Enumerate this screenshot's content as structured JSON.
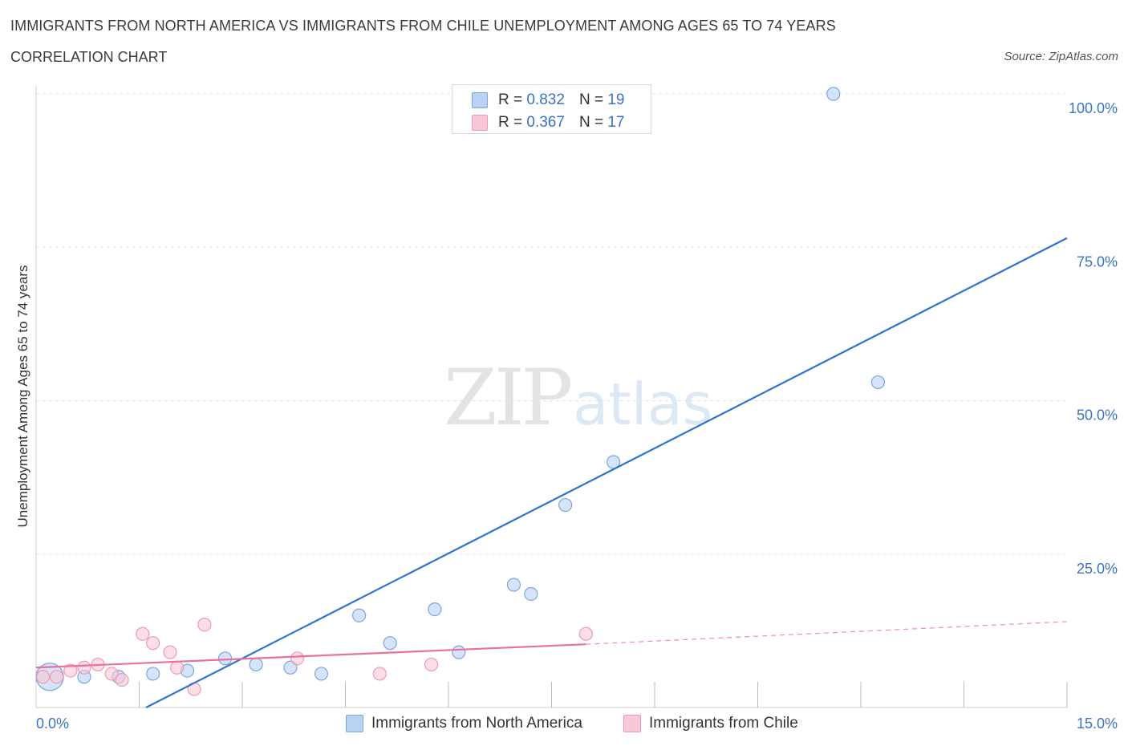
{
  "header": {
    "title": "IMMIGRANTS FROM NORTH AMERICA VS IMMIGRANTS FROM CHILE UNEMPLOYMENT AMONG AGES 65 TO 74 YEARS",
    "subtitle": "CORRELATION CHART",
    "source": "Source: ZipAtlas.com"
  },
  "watermark": {
    "zip": "ZIP",
    "atlas": "atlas"
  },
  "legend": {
    "series1": {
      "r_label": "R =",
      "r_value": "0.832",
      "n_label": "N =",
      "n_value": "19",
      "name": "Immigrants from North America"
    },
    "series2": {
      "r_label": "R =",
      "r_value": "0.367",
      "n_label": "N =",
      "n_value": "17",
      "name": "Immigrants from Chile"
    }
  },
  "colors": {
    "blue_fill": "#b9d2f3",
    "blue_stroke": "#7aa6e0",
    "blue_line": "#2e74d0",
    "pink_fill": "#f8c8d6",
    "pink_stroke": "#ee9ab4",
    "pink_line": "#e8729a",
    "grid": "#e2e2e2",
    "axis_label": "#3b73c4"
  },
  "chart_data": {
    "type": "scatter",
    "title": "IMMIGRANTS FROM NORTH AMERICA VS IMMIGRANTS FROM CHILE UNEMPLOYMENT AMONG AGES 65 TO 74 YEARS",
    "xlabel": "",
    "ylabel": "Unemployment Among Ages 65 to 74 years",
    "xlim": [
      0,
      15
    ],
    "ylim": [
      0,
      100
    ],
    "x_tick_labels": [
      "0.0%",
      "15.0%"
    ],
    "y_ticks": [
      25,
      50,
      75,
      100
    ],
    "y_tick_labels": [
      "25.0%",
      "50.0%",
      "75.0%",
      "100.0%"
    ],
    "grid": true,
    "legend_position": "top-center",
    "series": [
      {
        "name": "Immigrants from North America",
        "color": "blue",
        "points": [
          {
            "x": 0.2,
            "y": 5.0,
            "big": true
          },
          {
            "x": 0.7,
            "y": 5.0
          },
          {
            "x": 1.2,
            "y": 5.0
          },
          {
            "x": 1.7,
            "y": 5.5
          },
          {
            "x": 2.2,
            "y": 6.0
          },
          {
            "x": 2.75,
            "y": 8.0
          },
          {
            "x": 3.2,
            "y": 7.0
          },
          {
            "x": 3.7,
            "y": 6.5
          },
          {
            "x": 4.15,
            "y": 5.5
          },
          {
            "x": 4.7,
            "y": 15.0
          },
          {
            "x": 5.15,
            "y": 10.5
          },
          {
            "x": 5.8,
            "y": 16.0
          },
          {
            "x": 6.15,
            "y": 9.0
          },
          {
            "x": 6.95,
            "y": 20.0
          },
          {
            "x": 7.2,
            "y": 18.5
          },
          {
            "x": 7.7,
            "y": 33.0
          },
          {
            "x": 8.4,
            "y": 40.0
          },
          {
            "x": 11.6,
            "y": 100.0
          },
          {
            "x": 12.25,
            "y": 53.0
          }
        ],
        "trend": {
          "x0": 1.6,
          "y0": 0.0,
          "x1": 15.0,
          "y1": 76.5
        }
      },
      {
        "name": "Immigrants from Chile",
        "color": "pink",
        "points": [
          {
            "x": 0.1,
            "y": 5.0
          },
          {
            "x": 0.3,
            "y": 5.0
          },
          {
            "x": 0.5,
            "y": 6.0
          },
          {
            "x": 0.7,
            "y": 6.5
          },
          {
            "x": 0.9,
            "y": 7.0
          },
          {
            "x": 1.1,
            "y": 5.5
          },
          {
            "x": 1.25,
            "y": 4.5
          },
          {
            "x": 1.55,
            "y": 12.0
          },
          {
            "x": 1.7,
            "y": 10.5
          },
          {
            "x": 1.95,
            "y": 9.0
          },
          {
            "x": 2.05,
            "y": 6.5
          },
          {
            "x": 2.3,
            "y": 3.0
          },
          {
            "x": 2.45,
            "y": 13.5
          },
          {
            "x": 3.8,
            "y": 8.0
          },
          {
            "x": 5.0,
            "y": 5.5
          },
          {
            "x": 5.75,
            "y": 7.0
          },
          {
            "x": 8.0,
            "y": 12.0
          }
        ],
        "trend": {
          "x0": 0.0,
          "y0": 6.5,
          "x1": 8.0,
          "y1": 10.3
        },
        "trend_extension": {
          "x0": 8.0,
          "y0": 10.3,
          "x1": 15.0,
          "y1": 14.0
        }
      }
    ]
  }
}
